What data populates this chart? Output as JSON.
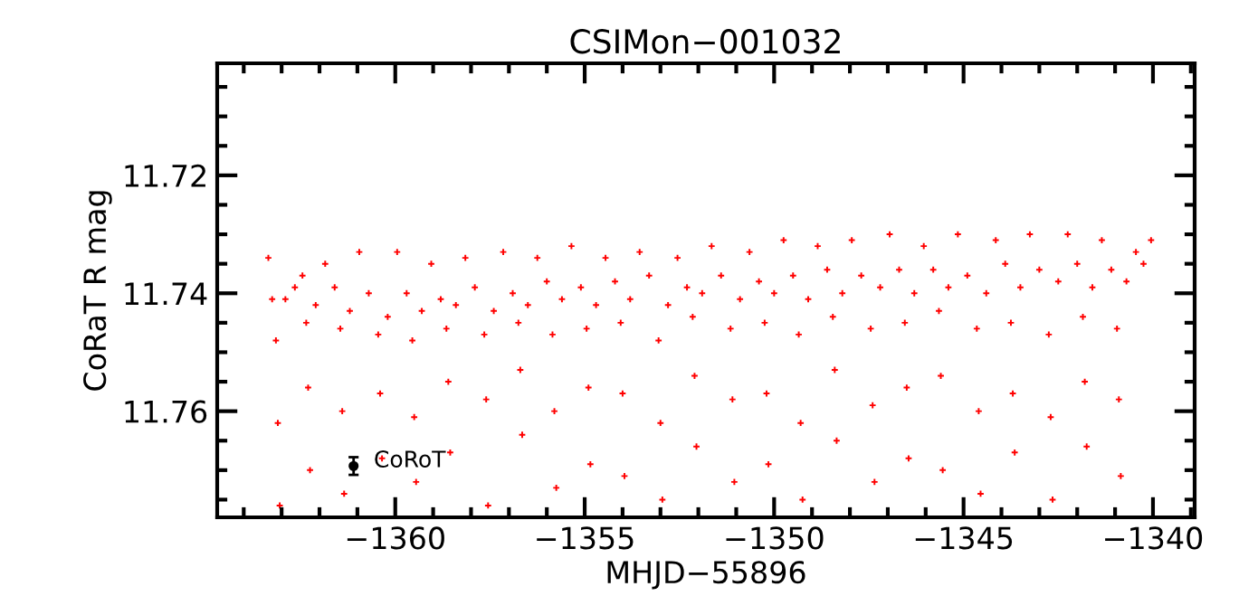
{
  "chart_data": {
    "type": "scatter",
    "title": "CSIMon−001032",
    "xlabel": "MHJD−55896",
    "ylabel": "CoRaT R mag",
    "xlim": [
      -1364.7,
      -1338.9
    ],
    "ylim": [
      11.778,
      11.701
    ],
    "xticks": [
      {
        "value": -1360,
        "label": "−1360"
      },
      {
        "value": -1355,
        "label": "−1355"
      },
      {
        "value": -1350,
        "label": "−1350"
      },
      {
        "value": -1345,
        "label": "−1345"
      },
      {
        "value": -1340,
        "label": "−1340"
      }
    ],
    "yticks": [
      11.72,
      11.74,
      11.76
    ],
    "grid": false,
    "marker": "cross",
    "annotations": [
      {
        "text": "CoRoT",
        "x": -1361.1,
        "y": 11.7693
      }
    ],
    "series": [
      {
        "color": "#ff0000",
        "x": [
          -1363.35,
          -1363.25,
          -1363.15,
          -1363.1,
          -1363.05,
          -1362.9,
          -1362.65,
          -1362.45,
          -1362.35,
          -1362.3,
          -1362.25,
          -1362.1,
          -1361.85,
          -1361.6,
          -1361.45,
          -1361.4,
          -1361.35,
          -1361.2,
          -1360.95,
          -1360.7,
          -1360.45,
          -1360.4,
          -1360.35,
          -1360.2,
          -1359.95,
          -1359.7,
          -1359.55,
          -1359.5,
          -1359.45,
          -1359.3,
          -1359.05,
          -1358.8,
          -1358.65,
          -1358.6,
          -1358.55,
          -1358.4,
          -1358.15,
          -1357.9,
          -1357.65,
          -1357.6,
          -1357.55,
          -1357.4,
          -1357.15,
          -1356.9,
          -1356.75,
          -1356.7,
          -1356.65,
          -1356.5,
          -1356.25,
          -1356.0,
          -1355.85,
          -1355.8,
          -1355.75,
          -1355.6,
          -1355.35,
          -1355.1,
          -1354.95,
          -1354.9,
          -1354.85,
          -1354.7,
          -1354.45,
          -1354.2,
          -1354.05,
          -1354.0,
          -1353.95,
          -1353.8,
          -1353.55,
          -1353.3,
          -1353.05,
          -1353.0,
          -1352.95,
          -1352.8,
          -1352.55,
          -1352.3,
          -1352.15,
          -1352.1,
          -1352.05,
          -1351.9,
          -1351.65,
          -1351.4,
          -1351.15,
          -1351.1,
          -1351.05,
          -1350.9,
          -1350.65,
          -1350.4,
          -1350.25,
          -1350.2,
          -1350.15,
          -1350.0,
          -1349.75,
          -1349.5,
          -1349.35,
          -1349.3,
          -1349.25,
          -1349.1,
          -1348.85,
          -1348.6,
          -1348.45,
          -1348.4,
          -1348.35,
          -1348.2,
          -1347.95,
          -1347.7,
          -1347.45,
          -1347.4,
          -1347.35,
          -1347.2,
          -1346.95,
          -1346.7,
          -1346.55,
          -1346.5,
          -1346.45,
          -1346.3,
          -1346.05,
          -1345.8,
          -1345.65,
          -1345.6,
          -1345.55,
          -1345.4,
          -1345.15,
          -1344.9,
          -1344.65,
          -1344.6,
          -1344.55,
          -1344.4,
          -1344.15,
          -1343.9,
          -1343.75,
          -1343.7,
          -1343.65,
          -1343.5,
          -1343.25,
          -1343.0,
          -1342.75,
          -1342.7,
          -1342.65,
          -1342.5,
          -1342.25,
          -1342.0,
          -1341.85,
          -1341.8,
          -1341.75,
          -1341.6,
          -1341.35,
          -1341.1,
          -1340.95,
          -1340.9,
          -1340.85,
          -1340.7,
          -1340.45,
          -1340.25,
          -1340.05
        ],
        "values": [
          11.734,
          11.741,
          11.748,
          11.762,
          11.776,
          11.741,
          11.739,
          11.737,
          11.745,
          11.756,
          11.77,
          11.742,
          11.735,
          11.739,
          11.746,
          11.76,
          11.774,
          11.743,
          11.733,
          11.74,
          11.747,
          11.757,
          11.768,
          11.744,
          11.733,
          11.74,
          11.748,
          11.761,
          11.772,
          11.743,
          11.735,
          11.741,
          11.746,
          11.755,
          11.767,
          11.742,
          11.734,
          11.739,
          11.747,
          11.758,
          11.776,
          11.743,
          11.733,
          11.74,
          11.745,
          11.753,
          11.764,
          11.742,
          11.734,
          11.738,
          11.747,
          11.76,
          11.773,
          11.741,
          11.732,
          11.739,
          11.746,
          11.756,
          11.769,
          11.742,
          11.734,
          11.738,
          11.745,
          11.757,
          11.771,
          11.741,
          11.733,
          11.737,
          11.748,
          11.762,
          11.775,
          11.742,
          11.734,
          11.739,
          11.744,
          11.754,
          11.766,
          11.74,
          11.732,
          11.737,
          11.746,
          11.758,
          11.772,
          11.741,
          11.733,
          11.738,
          11.745,
          11.757,
          11.769,
          11.74,
          11.731,
          11.737,
          11.747,
          11.762,
          11.775,
          11.741,
          11.732,
          11.736,
          11.744,
          11.753,
          11.765,
          11.74,
          11.731,
          11.737,
          11.746,
          11.759,
          11.772,
          11.739,
          11.73,
          11.736,
          11.745,
          11.756,
          11.768,
          11.74,
          11.732,
          11.736,
          11.743,
          11.754,
          11.77,
          11.739,
          11.73,
          11.737,
          11.746,
          11.76,
          11.774,
          11.74,
          11.731,
          11.735,
          11.745,
          11.757,
          11.767,
          11.739,
          11.73,
          11.736,
          11.747,
          11.761,
          11.775,
          11.738,
          11.73,
          11.735,
          11.744,
          11.755,
          11.766,
          11.739,
          11.731,
          11.736,
          11.746,
          11.758,
          11.771,
          11.738,
          11.733,
          11.735,
          11.731
        ]
      },
      {
        "color": "#000000",
        "marker": "circle",
        "x": [
          -1361.1
        ],
        "values": [
          11.7693
        ],
        "errors": [
          0.0015
        ]
      }
    ]
  }
}
